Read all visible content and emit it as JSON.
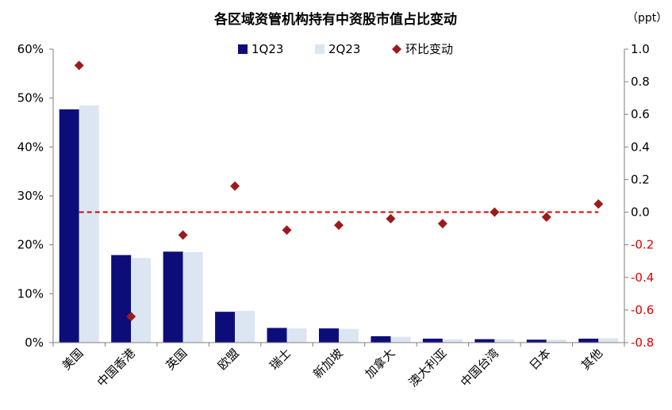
{
  "chart_data": {
    "type": "bar",
    "title": "各区域资管机构持有中资股市值占比变动",
    "right_unit": "（ppt）",
    "categories": [
      "美国",
      "中国香港",
      "英国",
      "欧盟",
      "瑞士",
      "新加坡",
      "加拿大",
      "澳大利亚",
      "中国台湾",
      "日本",
      "其他"
    ],
    "series": [
      {
        "name": "1Q23",
        "axis": "left",
        "kind": "bar",
        "color": "#0d0d7a",
        "values": [
          47.7,
          17.9,
          18.6,
          6.3,
          3.0,
          2.9,
          1.3,
          0.8,
          0.7,
          0.6,
          0.8
        ]
      },
      {
        "name": "2Q23",
        "axis": "left",
        "kind": "bar",
        "color": "#dce6f2",
        "values": [
          48.5,
          17.3,
          18.5,
          6.5,
          2.9,
          2.8,
          1.2,
          0.7,
          0.7,
          0.6,
          0.9
        ]
      },
      {
        "name": "环比变动",
        "axis": "right",
        "kind": "marker",
        "color": "#9b1b1b",
        "values": [
          0.9,
          -0.64,
          -0.14,
          0.16,
          -0.11,
          -0.08,
          -0.04,
          -0.07,
          0.0,
          -0.03,
          0.05
        ]
      }
    ],
    "left_axis": {
      "ylim": [
        0,
        60
      ],
      "ticks": [
        0,
        10,
        20,
        30,
        40,
        50,
        60
      ],
      "tick_labels": [
        "0%",
        "10%",
        "20%",
        "30%",
        "40%",
        "50%",
        "60%"
      ]
    },
    "right_axis": {
      "ylim": [
        -0.8,
        1.0
      ],
      "ticks": [
        1.0,
        0.8,
        0.6,
        0.4,
        0.2,
        0.0,
        -0.2,
        -0.4,
        -0.6,
        -0.8
      ],
      "tick_labels": [
        "1.0",
        "0.8",
        "0.6",
        "0.4",
        "0.2",
        "0.0",
        "-0.2",
        "-0.4",
        "-0.6",
        "-0.8"
      ],
      "negative_color": "#e00000",
      "positive_color": "#000000"
    },
    "reference_line": {
      "axis": "right",
      "value": 0.0,
      "color": "#e00000",
      "style": "dashed"
    },
    "legend_position": "top-center",
    "grid": false
  }
}
